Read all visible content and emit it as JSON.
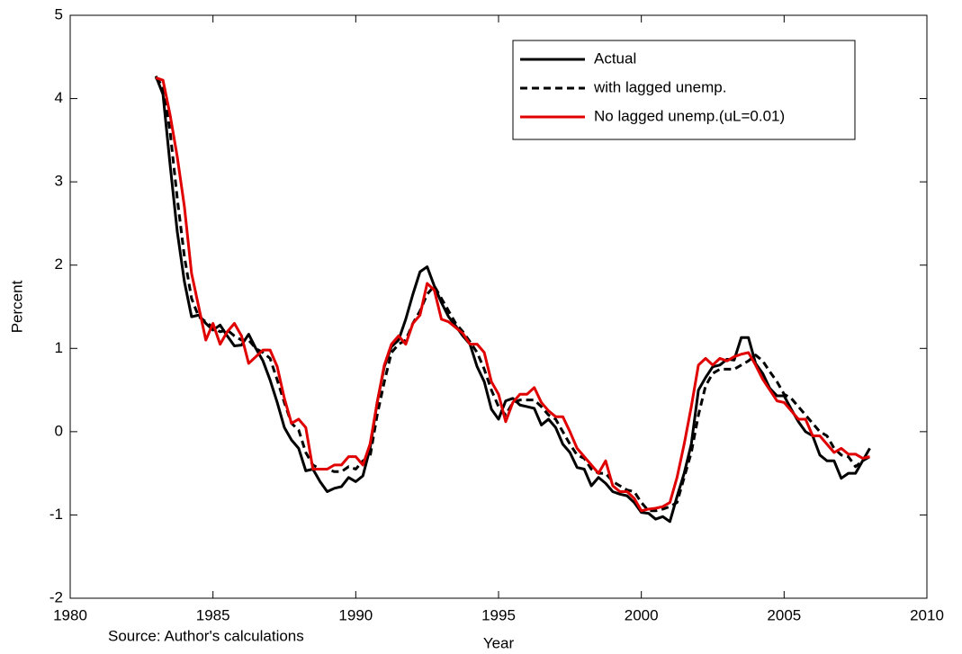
{
  "chart_data": {
    "type": "line",
    "xlabel": "Year",
    "ylabel": "Percent",
    "note": "Source: Author's calculations",
    "xlim": [
      1980,
      2010
    ],
    "xticks": [
      1980,
      1985,
      1990,
      1995,
      2000,
      2005,
      2010
    ],
    "ylim": [
      -2,
      5
    ],
    "yticks": [
      -2,
      -1,
      0,
      1,
      2,
      3,
      4,
      5
    ],
    "grid": false,
    "legend": "upper right",
    "x": [
      1983,
      1983.25,
      1983.5,
      1983.75,
      1984,
      1984.25,
      1984.5,
      1984.75,
      1985,
      1985.25,
      1985.5,
      1985.75,
      1986,
      1986.25,
      1986.5,
      1986.75,
      1987,
      1987.25,
      1987.5,
      1987.75,
      1988,
      1988.25,
      1988.5,
      1988.75,
      1989,
      1989.25,
      1989.5,
      1989.75,
      1990,
      1990.25,
      1990.5,
      1990.75,
      1991,
      1991.25,
      1991.5,
      1991.75,
      1992,
      1992.25,
      1992.5,
      1992.75,
      1993,
      1993.25,
      1993.5,
      1993.75,
      1994,
      1994.25,
      1994.5,
      1994.75,
      1995,
      1995.25,
      1995.5,
      1995.75,
      1996,
      1996.25,
      1996.5,
      1996.75,
      1997,
      1997.25,
      1997.5,
      1997.75,
      1998,
      1998.25,
      1998.5,
      1998.75,
      1999,
      1999.25,
      1999.5,
      1999.75,
      2000,
      2000.25,
      2000.5,
      2000.75,
      2001,
      2001.25,
      2001.5,
      2001.75,
      2002,
      2002.25,
      2002.5,
      2002.75,
      2003,
      2003.25,
      2003.5,
      2003.75,
      2004,
      2004.25,
      2004.5,
      2004.75,
      2005,
      2005.25,
      2005.5,
      2005.75,
      2006,
      2006.25,
      2006.5,
      2006.75,
      2007,
      2007.25,
      2007.5,
      2007.75,
      2008
    ],
    "series": [
      {
        "name": "Actual",
        "color": "#000000",
        "linestyle": "solid",
        "values": [
          4.27,
          4.05,
          3.2,
          2.4,
          1.8,
          1.38,
          1.4,
          1.3,
          1.22,
          1.28,
          1.15,
          1.03,
          1.04,
          1.17,
          1.0,
          0.85,
          0.62,
          0.35,
          0.05,
          -0.1,
          -0.2,
          -0.47,
          -0.45,
          -0.6,
          -0.72,
          -0.68,
          -0.66,
          -0.55,
          -0.6,
          -0.53,
          -0.2,
          0.35,
          0.78,
          1.02,
          1.1,
          1.35,
          1.65,
          1.92,
          1.98,
          1.75,
          1.55,
          1.38,
          1.27,
          1.15,
          1.05,
          0.78,
          0.6,
          0.27,
          0.15,
          0.37,
          0.4,
          0.32,
          0.3,
          0.28,
          0.08,
          0.15,
          0.05,
          -0.15,
          -0.25,
          -0.43,
          -0.45,
          -0.65,
          -0.55,
          -0.62,
          -0.72,
          -0.75,
          -0.77,
          -0.85,
          -0.97,
          -0.98,
          -1.05,
          -1.02,
          -1.08,
          -0.78,
          -0.5,
          -0.15,
          0.5,
          0.65,
          0.78,
          0.8,
          0.87,
          0.86,
          1.13,
          1.13,
          0.82,
          0.7,
          0.52,
          0.43,
          0.43,
          0.27,
          0.12,
          0.0,
          -0.05,
          -0.28,
          -0.35,
          -0.35,
          -0.56,
          -0.5,
          -0.5,
          -0.35,
          -0.2
        ]
      },
      {
        "name": "with lagged unemp.",
        "color": "#000000",
        "linestyle": "dashed",
        "values": [
          4.25,
          4.15,
          3.6,
          2.8,
          2.1,
          1.6,
          1.38,
          1.32,
          1.25,
          1.2,
          1.22,
          1.15,
          1.1,
          1.1,
          1.0,
          0.95,
          0.88,
          0.62,
          0.35,
          0.1,
          0.02,
          -0.25,
          -0.4,
          -0.45,
          -0.45,
          -0.48,
          -0.48,
          -0.42,
          -0.45,
          -0.35,
          -0.3,
          0.2,
          0.6,
          0.95,
          1.05,
          1.1,
          1.3,
          1.45,
          1.65,
          1.75,
          1.6,
          1.45,
          1.3,
          1.2,
          1.08,
          0.95,
          0.75,
          0.5,
          0.3,
          0.2,
          0.35,
          0.38,
          0.38,
          0.38,
          0.3,
          0.2,
          0.15,
          0.0,
          -0.15,
          -0.28,
          -0.32,
          -0.45,
          -0.5,
          -0.5,
          -0.6,
          -0.65,
          -0.7,
          -0.72,
          -0.85,
          -0.95,
          -0.95,
          -0.93,
          -0.9,
          -0.85,
          -0.55,
          -0.25,
          0.2,
          0.55,
          0.7,
          0.75,
          0.75,
          0.75,
          0.8,
          0.85,
          0.92,
          0.85,
          0.72,
          0.6,
          0.45,
          0.4,
          0.3,
          0.2,
          0.1,
          0.0,
          -0.05,
          -0.2,
          -0.28,
          -0.3,
          -0.42,
          -0.35,
          -0.3
        ]
      },
      {
        "name": "No lagged unemp.(uL=0.01)",
        "color": "#e00000",
        "linestyle": "solid",
        "values": [
          4.25,
          4.22,
          3.8,
          3.3,
          2.7,
          1.9,
          1.5,
          1.1,
          1.3,
          1.05,
          1.2,
          1.3,
          1.15,
          0.82,
          0.9,
          0.98,
          0.98,
          0.78,
          0.4,
          0.1,
          0.15,
          0.05,
          -0.45,
          -0.45,
          -0.45,
          -0.4,
          -0.4,
          -0.3,
          -0.3,
          -0.4,
          -0.15,
          0.35,
          0.8,
          1.05,
          1.15,
          1.05,
          1.3,
          1.4,
          1.78,
          1.7,
          1.35,
          1.32,
          1.25,
          1.18,
          1.05,
          1.05,
          0.95,
          0.6,
          0.45,
          0.12,
          0.35,
          0.45,
          0.45,
          0.53,
          0.35,
          0.25,
          0.18,
          0.18,
          0.0,
          -0.2,
          -0.3,
          -0.4,
          -0.5,
          -0.35,
          -0.65,
          -0.72,
          -0.72,
          -0.8,
          -0.95,
          -0.93,
          -0.92,
          -0.9,
          -0.85,
          -0.55,
          -0.15,
          0.3,
          0.8,
          0.88,
          0.8,
          0.88,
          0.85,
          0.9,
          0.93,
          0.95,
          0.8,
          0.63,
          0.5,
          0.37,
          0.35,
          0.25,
          0.15,
          0.15,
          -0.05,
          -0.05,
          -0.15,
          -0.25,
          -0.2,
          -0.27,
          -0.27,
          -0.32,
          -0.3
        ]
      }
    ]
  }
}
